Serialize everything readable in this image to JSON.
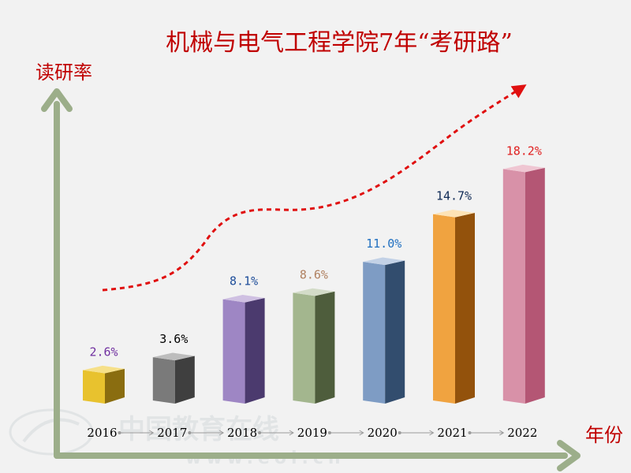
{
  "chart_data": {
    "type": "bar",
    "title": "机械与电气工程学院7年“考研路”",
    "ylabel": "读研率",
    "xlabel": "年份",
    "categories": [
      "2016",
      "2017",
      "2018",
      "2019",
      "2020",
      "2021",
      "2022"
    ],
    "values": [
      2.6,
      3.6,
      8.1,
      8.6,
      11.0,
      14.7,
      18.2
    ],
    "value_labels": [
      "2.6%",
      "3.6%",
      "8.1%",
      "8.6%",
      "11.0%",
      "14.7%",
      "18.2%"
    ],
    "ylim": [
      0,
      20
    ],
    "grid": false,
    "legend": "none",
    "trend": "dashed red curve rising above bars",
    "colors": {
      "bars": [
        "#e8c22e",
        "#7a7a7a",
        "#9e86c4",
        "#a3b68e",
        "#7e9cc4",
        "#f0a340",
        "#d891a8"
      ],
      "bars_side": [
        "#8a6d10",
        "#3f3f3f",
        "#4b3a6e",
        "#4e5d3c",
        "#324d6e",
        "#93520c",
        "#b45674"
      ],
      "bars_top": [
        "#f6e089",
        "#bdbdbd",
        "#cfc0e2",
        "#d3dcc8",
        "#c2d1e6",
        "#fde3b6",
        "#efc6d2"
      ],
      "value_labels": [
        "#7030a0",
        "#000000",
        "#1f4e9a",
        "#b08060",
        "#1f6fc0",
        "#0f2a55",
        "#e02020"
      ],
      "title": "#c00000",
      "axis": "#9cae8a",
      "axis_labels": "#c00000",
      "trend": "#e01010",
      "category_labels": "#000000"
    }
  },
  "watermark": {
    "text": "中国教育在线",
    "url": "www.eol.cn"
  }
}
